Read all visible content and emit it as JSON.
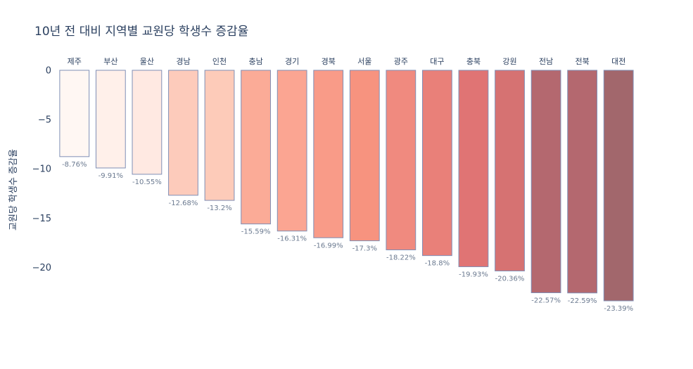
{
  "chart_data": {
    "type": "bar",
    "title": "10년 전 대비 지역별 교원당 학생수 증감율",
    "xlabel": "",
    "ylabel": "교원당 학생수 증감율",
    "ylim": [
      -23.39,
      0
    ],
    "yticks": [
      0,
      -5,
      -10,
      -15,
      -20
    ],
    "xaxis_side": "top",
    "grid": false,
    "legend": "none",
    "categories": [
      "제주",
      "부산",
      "울산",
      "경남",
      "인천",
      "충남",
      "경기",
      "경북",
      "서울",
      "광주",
      "대구",
      "충북",
      "강원",
      "전남",
      "전북",
      "대전"
    ],
    "values": [
      -8.76,
      -9.91,
      -10.55,
      -12.68,
      -13.2,
      -15.59,
      -16.31,
      -16.99,
      -17.3,
      -18.22,
      -18.8,
      -19.93,
      -20.36,
      -22.57,
      -22.59,
      -23.39
    ],
    "data_labels": [
      "-8.76%",
      "-9.91%",
      "-10.55%",
      "-12.68%",
      "-13.2%",
      "-15.59%",
      "-16.31%",
      "-16.99%",
      "-17.3%",
      "-18.22%",
      "-18.8%",
      "-19.93%",
      "-20.36%",
      "-22.57%",
      "-22.59%",
      "-23.39%"
    ],
    "bar_colors": [
      "#fff7f3",
      "#fff0ea",
      "#ffe9e2",
      "#fdcbbb",
      "#fdcbb9",
      "#fbab97",
      "#fba592",
      "#f99b88",
      "#f7937f",
      "#f08a7f",
      "#e98079",
      "#e07474",
      "#d67272",
      "#b4686f",
      "#b4686f",
      "#a2676c"
    ],
    "bar_outline_color": "#7f8fb6"
  }
}
